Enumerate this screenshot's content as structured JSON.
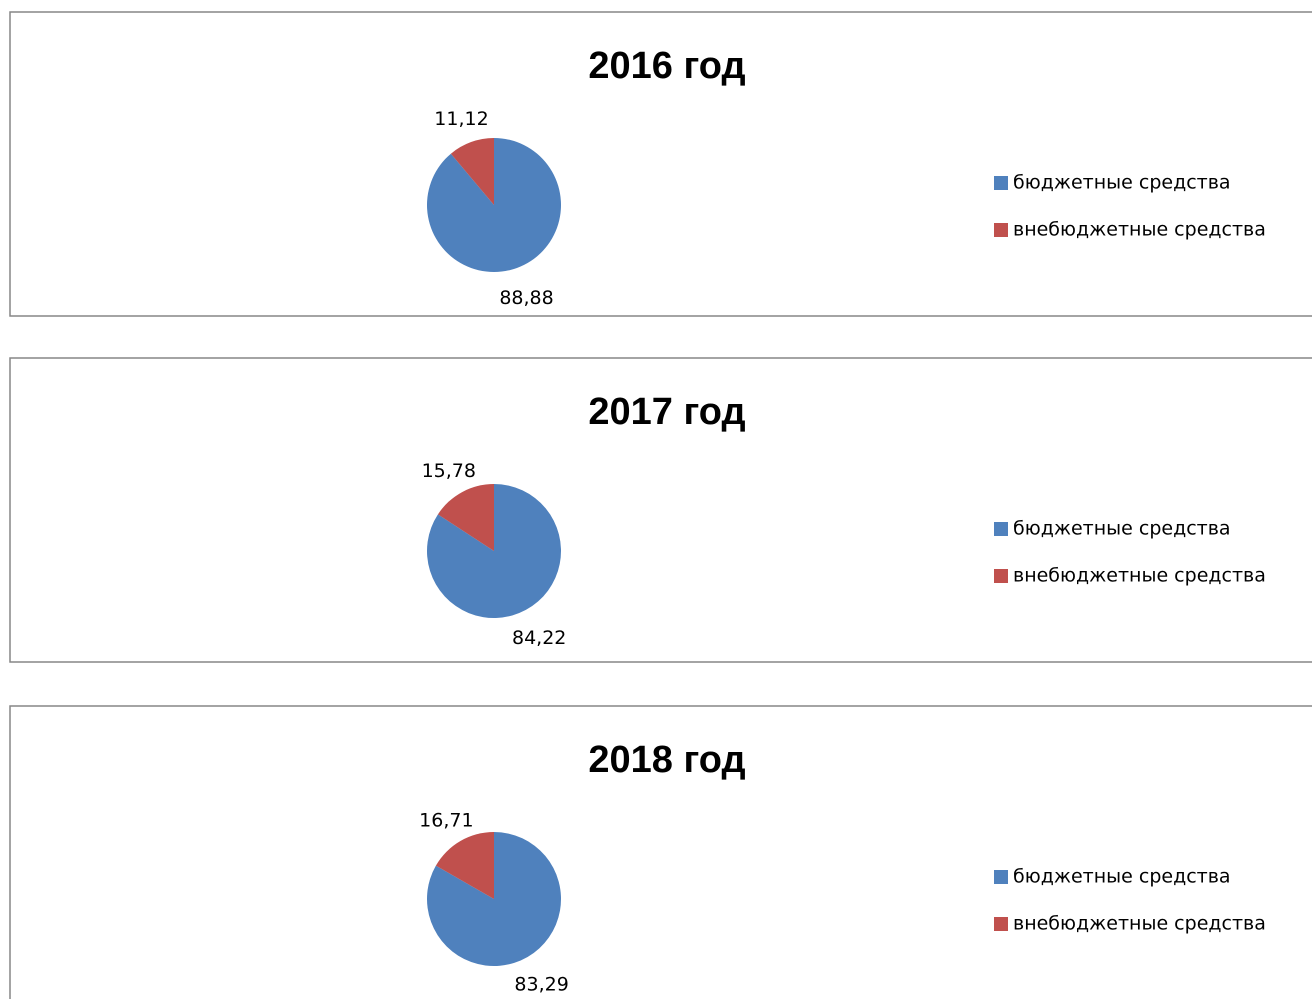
{
  "chart_data": [
    {
      "type": "pie",
      "title": "2016 год",
      "categories": [
        "бюджетные средства",
        "внебюджетные средства"
      ],
      "values": [
        88.88,
        11.12
      ],
      "value_labels": [
        "88,88",
        "11,12"
      ],
      "colors": [
        "#4f81bd",
        "#c0504d"
      ],
      "legend": "right"
    },
    {
      "type": "pie",
      "title": "2017 год",
      "categories": [
        "бюджетные средства",
        "внебюджетные средства"
      ],
      "values": [
        84.22,
        15.78
      ],
      "value_labels": [
        "84,22",
        "15,78"
      ],
      "colors": [
        "#4f81bd",
        "#c0504d"
      ],
      "legend": "right"
    },
    {
      "type": "pie",
      "title": "2018 год",
      "categories": [
        "бюджетные средства",
        "внебюджетные средства"
      ],
      "values": [
        83.29,
        16.71
      ],
      "value_labels": [
        "83,29",
        "16,71"
      ],
      "colors": [
        "#4f81bd",
        "#c0504d"
      ],
      "legend": "right"
    }
  ]
}
